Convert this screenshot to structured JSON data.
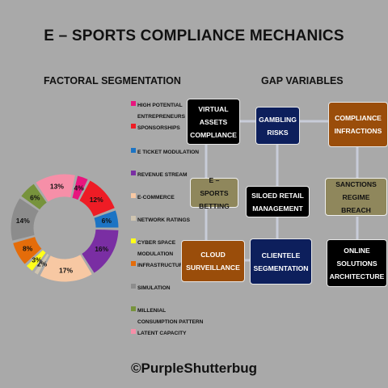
{
  "title": "E – SPORTS COMPLIANCE MECHANICS",
  "left_heading": "FACTORAL SEGMENTATION",
  "right_heading": "GAP VARIABLES",
  "footer": "©PurpleShutterbug",
  "chart_data": {
    "type": "pie",
    "categories": [
      "High Potential Entrepreneurs",
      "Sponsorships",
      "E Ticket Modulation",
      "Revenue Stream",
      "E-Commerce",
      "Network Ratings",
      "Cyber Space Modulation",
      "Infrastructure",
      "Simulation",
      "Millenial Consumption Pattern",
      "Latent Capacity"
    ],
    "values": [
      4,
      12,
      6,
      16,
      17,
      2,
      3,
      8,
      14,
      6,
      13
    ],
    "labels": [
      "4%",
      "12%",
      "6%",
      "16%",
      "17%",
      "2%",
      "3%",
      "8%",
      "14%",
      "6%",
      "13%"
    ],
    "colors": [
      "#e8157e",
      "#ee1c25",
      "#1c74c4",
      "#7a2ea3",
      "#f7c8a3",
      "#cfc4b0",
      "#ffff1a",
      "#e46c0a",
      "#8c8c8c",
      "#77933c",
      "#f68fa8"
    ],
    "legend_placement": "right"
  },
  "legend": [
    {
      "label": "High Potential Entrepreneurs",
      "color": "#e8157e"
    },
    {
      "label": "Sponsorships",
      "color": "#ee1c25"
    },
    {
      "label": "E Ticket Modulation",
      "color": "#1c74c4"
    },
    {
      "label": "Revenue Stream",
      "color": "#7a2ea3"
    },
    {
      "label": "E-Commerce",
      "color": "#f7c8a3"
    },
    {
      "label": "Network Ratings",
      "color": "#cfc4b0"
    },
    {
      "label": "Cyber Space Modulation",
      "color": "#ffff1a"
    },
    {
      "label": "Infrastructure",
      "color": "#e46c0a"
    },
    {
      "label": "Simulation",
      "color": "#8c8c8c"
    },
    {
      "label": "Millenial Consumption Pattern",
      "color": "#77933c"
    },
    {
      "label": "Latent Capacity",
      "color": "#f68fa8"
    }
  ],
  "boxes": {
    "virtual_assets": "VIRTUAL ASSETS COMPLIANCE",
    "gambling": "GAMBLING RISKS",
    "compliance_infractions": "COMPLIANCE INFRACTIONS",
    "esports_betting": "E – SPORTS BETTING",
    "siloed_retail": "SILOED RETAIL MANAGEMENT",
    "sanctions": "SANCTIONS REGIME BREACH",
    "cloud": "CLOUD SURVEILLANCE",
    "clientele": "CLIENTELE SEGMENTATION",
    "online_solutions": "ONLINE SOLUTIONS ARCHITECTURE"
  }
}
